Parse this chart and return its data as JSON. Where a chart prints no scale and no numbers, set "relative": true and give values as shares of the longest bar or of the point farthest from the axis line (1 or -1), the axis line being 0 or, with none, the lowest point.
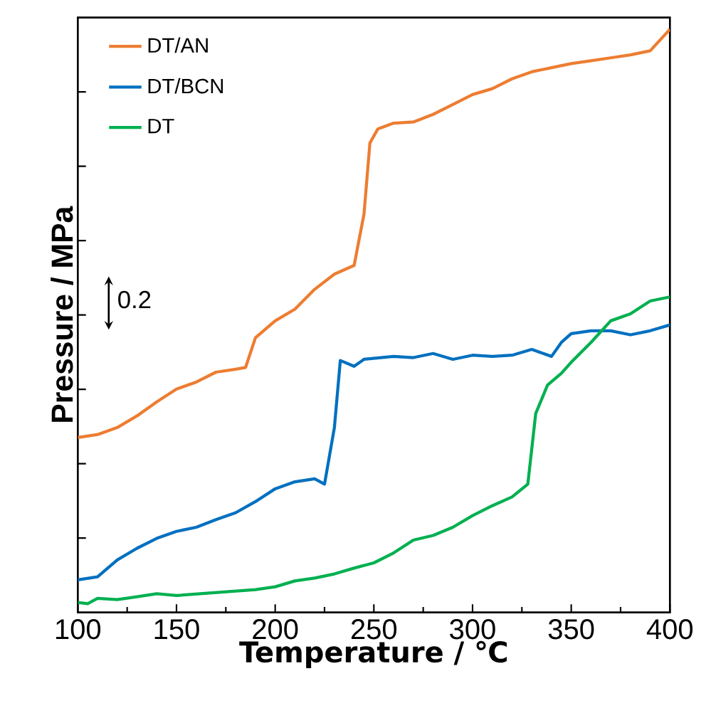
{
  "chart_data": {
    "type": "line",
    "relative": true,
    "xlabel": "Temperature / ℃",
    "ylabel": "Pressure / MPa",
    "xlim": [
      100,
      400
    ],
    "xticks": [
      100,
      150,
      200,
      250,
      300,
      350,
      400
    ],
    "tick_labels": "x",
    "legend": "top left",
    "marker": "none",
    "line_style": "solid",
    "grid": false,
    "annotations": [
      "0.2"
    ],
    "series": [
      {
        "name": "DT/AN",
        "color": "#ed7d31",
        "x": [
          100,
          110,
          120,
          130,
          140,
          150,
          160,
          170,
          180,
          185,
          190,
          200,
          210,
          220,
          230,
          240,
          245,
          248,
          252,
          260,
          270,
          280,
          290,
          300,
          310,
          320,
          330,
          340,
          350,
          360,
          370,
          380,
          390,
          400
        ],
        "values": [
          0.3,
          0.305,
          0.317,
          0.337,
          0.361,
          0.383,
          0.395,
          0.412,
          0.417,
          0.42,
          0.471,
          0.5,
          0.52,
          0.554,
          0.58,
          0.595,
          0.683,
          0.805,
          0.829,
          0.839,
          0.841,
          0.854,
          0.871,
          0.888,
          0.898,
          0.915,
          0.927,
          0.934,
          0.941,
          0.946,
          0.951,
          0.956,
          0.963,
          1.0
        ]
      },
      {
        "name": "DT/BCN",
        "color": "#0070c0",
        "x": [
          100,
          110,
          120,
          130,
          140,
          150,
          160,
          170,
          180,
          190,
          200,
          210,
          220,
          225,
          230,
          233,
          240,
          245,
          260,
          270,
          280,
          290,
          300,
          310,
          320,
          330,
          340,
          345,
          350,
          360,
          370,
          380,
          390,
          400
        ],
        "values": [
          0.056,
          0.061,
          0.09,
          0.11,
          0.127,
          0.139,
          0.146,
          0.159,
          0.171,
          0.19,
          0.212,
          0.224,
          0.229,
          0.22,
          0.317,
          0.432,
          0.422,
          0.434,
          0.439,
          0.437,
          0.444,
          0.434,
          0.441,
          0.439,
          0.441,
          0.451,
          0.439,
          0.463,
          0.478,
          0.483,
          0.483,
          0.476,
          0.483,
          0.493
        ]
      },
      {
        "name": "DT",
        "color": "#00b050",
        "x": [
          100,
          105,
          110,
          120,
          130,
          140,
          150,
          170,
          190,
          200,
          210,
          220,
          230,
          240,
          250,
          260,
          270,
          280,
          290,
          300,
          310,
          320,
          328,
          332,
          338,
          345,
          350,
          360,
          370,
          380,
          390,
          400
        ],
        "values": [
          0.017,
          0.015,
          0.024,
          0.022,
          0.027,
          0.032,
          0.029,
          0.034,
          0.039,
          0.044,
          0.054,
          0.059,
          0.066,
          0.076,
          0.085,
          0.102,
          0.124,
          0.132,
          0.146,
          0.166,
          0.183,
          0.198,
          0.22,
          0.341,
          0.39,
          0.41,
          0.429,
          0.463,
          0.5,
          0.512,
          0.534,
          0.541
        ]
      }
    ]
  }
}
